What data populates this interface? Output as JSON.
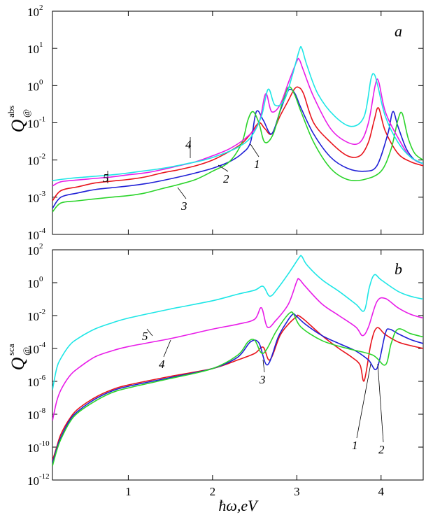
{
  "chart_data": [
    {
      "type": "line",
      "panel_label": "a",
      "ylabel": "Q",
      "ylabel_sub": "@",
      "ylabel_sup": "abs",
      "yscale": "log",
      "xlim": [
        0.1,
        4.5
      ],
      "ylim": [
        0.0001,
        100
      ],
      "y_ticks": [
        {
          "m": "10",
          "e": "-4"
        },
        {
          "m": "10",
          "e": "-3"
        },
        {
          "m": "10",
          "e": "-2"
        },
        {
          "m": "10",
          "e": "-1"
        },
        {
          "m": "10",
          "e": "0"
        },
        {
          "m": "10",
          "e": "1"
        },
        {
          "m": "10",
          "e": "2"
        }
      ],
      "series": [
        {
          "label": "1",
          "color": "#e8141c",
          "x": [
            0.1,
            0.2,
            0.4,
            0.6,
            0.8,
            1.0,
            1.2,
            1.4,
            1.6,
            1.8,
            2.0,
            2.2,
            2.35,
            2.45,
            2.55,
            2.62,
            2.7,
            2.8,
            2.9,
            2.97,
            3.02,
            3.08,
            3.2,
            3.4,
            3.6,
            3.75,
            3.85,
            3.92,
            3.97,
            4.05,
            4.2,
            4.35,
            4.5
          ],
          "y": [
            0.0008,
            0.0015,
            0.0019,
            0.0024,
            0.0027,
            0.003,
            0.0035,
            0.0045,
            0.0055,
            0.007,
            0.01,
            0.017,
            0.028,
            0.05,
            0.1,
            0.07,
            0.05,
            0.15,
            0.4,
            0.8,
            0.9,
            0.6,
            0.1,
            0.03,
            0.013,
            0.013,
            0.03,
            0.12,
            0.25,
            0.06,
            0.015,
            0.009,
            0.007
          ]
        },
        {
          "label": "2",
          "color": "#1f1fd6",
          "x": [
            0.1,
            0.2,
            0.4,
            0.6,
            0.8,
            1.0,
            1.2,
            1.4,
            1.6,
            1.8,
            2.0,
            2.2,
            2.35,
            2.45,
            2.52,
            2.6,
            2.7,
            2.8,
            2.88,
            2.92,
            2.98,
            3.05,
            3.2,
            3.4,
            3.6,
            3.8,
            3.95,
            4.08,
            4.14,
            4.2,
            4.3,
            4.4,
            4.5
          ],
          "y": [
            0.0005,
            0.001,
            0.0013,
            0.0016,
            0.0018,
            0.002,
            0.0023,
            0.0028,
            0.0035,
            0.0045,
            0.006,
            0.009,
            0.015,
            0.03,
            0.2,
            0.12,
            0.05,
            0.2,
            0.6,
            0.8,
            0.6,
            0.25,
            0.05,
            0.012,
            0.006,
            0.005,
            0.007,
            0.05,
            0.2,
            0.08,
            0.02,
            0.01,
            0.008
          ]
        },
        {
          "label": "3",
          "color": "#2bd42b",
          "x": [
            0.1,
            0.2,
            0.4,
            0.6,
            0.8,
            1.0,
            1.2,
            1.4,
            1.6,
            1.8,
            2.0,
            2.2,
            2.35,
            2.42,
            2.48,
            2.55,
            2.62,
            2.72,
            2.82,
            2.9,
            2.97,
            3.05,
            3.2,
            3.4,
            3.6,
            3.8,
            4.0,
            4.12,
            4.2,
            4.25,
            4.32,
            4.4,
            4.5
          ],
          "y": [
            0.0004,
            0.0007,
            0.0008,
            0.0009,
            0.001,
            0.0011,
            0.0013,
            0.0017,
            0.0022,
            0.003,
            0.005,
            0.009,
            0.03,
            0.12,
            0.2,
            0.1,
            0.03,
            0.05,
            0.3,
            0.9,
            0.6,
            0.2,
            0.03,
            0.006,
            0.003,
            0.003,
            0.005,
            0.02,
            0.12,
            0.18,
            0.04,
            0.015,
            0.01
          ]
        },
        {
          "label": "4",
          "color": "#e81ce8",
          "x": [
            0.1,
            0.2,
            0.4,
            0.6,
            0.8,
            1.0,
            1.2,
            1.4,
            1.6,
            1.8,
            2.0,
            2.2,
            2.4,
            2.55,
            2.63,
            2.7,
            2.8,
            2.9,
            3.0,
            3.03,
            3.08,
            3.2,
            3.4,
            3.6,
            3.75,
            3.85,
            3.93,
            3.97,
            4.05,
            4.2,
            4.35,
            4.5
          ],
          "y": [
            0.002,
            0.0026,
            0.0029,
            0.0032,
            0.0035,
            0.004,
            0.0045,
            0.0055,
            0.007,
            0.009,
            0.013,
            0.02,
            0.04,
            0.1,
            0.6,
            0.2,
            0.3,
            1.2,
            4.5,
            5.0,
            2.5,
            0.5,
            0.07,
            0.03,
            0.03,
            0.1,
            1.0,
            1.3,
            0.2,
            0.04,
            0.012,
            0.008
          ]
        },
        {
          "label": "5",
          "color": "#1de6e6",
          "x": [
            0.1,
            0.3,
            0.5,
            0.7,
            0.9,
            1.1,
            1.3,
            1.5,
            1.7,
            1.9,
            2.1,
            2.3,
            2.45,
            2.58,
            2.66,
            2.74,
            2.85,
            2.95,
            3.03,
            3.06,
            3.12,
            3.25,
            3.45,
            3.65,
            3.8,
            3.88,
            3.92,
            3.96,
            4.05,
            4.2,
            4.35,
            4.5
          ],
          "y": [
            0.0028,
            0.0032,
            0.0035,
            0.0038,
            0.0042,
            0.0048,
            0.0055,
            0.0065,
            0.008,
            0.01,
            0.014,
            0.022,
            0.04,
            0.15,
            0.8,
            0.3,
            0.4,
            2.0,
            9.0,
            10.0,
            3.5,
            0.6,
            0.15,
            0.08,
            0.15,
            1.5,
            2.0,
            1.0,
            0.15,
            0.03,
            0.012,
            0.008
          ]
        }
      ],
      "annotations": [
        "1",
        "2",
        "3",
        "4",
        "5"
      ]
    },
    {
      "type": "line",
      "panel_label": "b",
      "ylabel": "Q",
      "ylabel_sub": "@",
      "ylabel_sup": "sca",
      "yscale": "log",
      "xlabel": "ħω,eV",
      "xlim": [
        0.1,
        4.5
      ],
      "ylim": [
        1e-12,
        100
      ],
      "x_ticks": [
        "1",
        "2",
        "3",
        "4"
      ],
      "y_ticks": [
        {
          "m": "10",
          "e": "-12"
        },
        {
          "m": "10",
          "e": "-10"
        },
        {
          "m": "10",
          "e": "-8"
        },
        {
          "m": "10",
          "e": "-6"
        },
        {
          "m": "10",
          "e": "-4"
        },
        {
          "m": "10",
          "e": "-2"
        },
        {
          "m": "10",
          "e": "0"
        },
        {
          "m": "10",
          "e": "2"
        }
      ],
      "series": [
        {
          "label": "1",
          "color": "#e8141c",
          "x": [
            0.1,
            0.15,
            0.2,
            0.3,
            0.4,
            0.6,
            0.8,
            1.0,
            1.5,
            2.0,
            2.3,
            2.5,
            2.6,
            2.68,
            2.8,
            2.9,
            3.0,
            3.02,
            3.1,
            3.3,
            3.5,
            3.65,
            3.75,
            3.8,
            3.88,
            3.95,
            4.05,
            4.2,
            4.35,
            4.5
          ],
          "y": [
            1.5e-11,
            1e-10,
            6e-10,
            5e-09,
            2e-08,
            1e-07,
            3e-07,
            6e-07,
            2e-06,
            6e-06,
            2e-05,
            5e-05,
            0.00012,
            2e-05,
            0.0006,
            0.003,
            0.009,
            0.01,
            0.005,
            0.0006,
            0.0001,
            3e-05,
            1e-05,
            1.1e-06,
            0.0002,
            0.0018,
            0.0007,
            0.00025,
            0.00015,
            0.0001
          ]
        },
        {
          "label": "2",
          "color": "#1f1fd6",
          "x": [
            0.1,
            0.15,
            0.2,
            0.3,
            0.4,
            0.6,
            0.8,
            1.0,
            1.5,
            2.0,
            2.3,
            2.45,
            2.55,
            2.65,
            2.78,
            2.88,
            2.95,
            2.98,
            3.1,
            3.3,
            3.5,
            3.7,
            3.85,
            3.95,
            4.05,
            4.1,
            4.2,
            4.35,
            4.5
          ],
          "y": [
            1e-11,
            8e-11,
            4e-10,
            4e-09,
            1.5e-08,
            8e-08,
            2.5e-07,
            5e-07,
            1.7e-06,
            6e-06,
            3e-05,
            0.00025,
            0.00022,
            1e-05,
            0.0005,
            0.004,
            0.012,
            0.011,
            0.003,
            0.0006,
            0.0002,
            7e-05,
            2e-05,
            6e-06,
            0.0008,
            0.0015,
            0.0008,
            0.00035,
            0.0002
          ]
        },
        {
          "label": "3",
          "color": "#2bd42b",
          "x": [
            0.1,
            0.15,
            0.2,
            0.3,
            0.4,
            0.6,
            0.8,
            1.0,
            1.5,
            2.0,
            2.3,
            2.42,
            2.5,
            2.6,
            2.75,
            2.85,
            2.92,
            2.96,
            3.05,
            3.3,
            3.6,
            3.9,
            4.05,
            4.12,
            4.2,
            4.35,
            4.5
          ],
          "y": [
            7e-12,
            6e-11,
            3e-10,
            3e-09,
            1.2e-08,
            6e-08,
            2e-07,
            4e-07,
            1.5e-06,
            6e-06,
            4e-05,
            0.00025,
            0.00032,
            5e-05,
            0.001,
            0.006,
            0.015,
            0.013,
            0.002,
            0.0003,
            0.0001,
            4e-05,
            1e-05,
            0.0002,
            0.0015,
            0.0008,
            0.0005
          ]
        },
        {
          "label": "4",
          "color": "#e81ce8",
          "x": [
            0.1,
            0.15,
            0.2,
            0.3,
            0.4,
            0.6,
            0.8,
            1.0,
            1.5,
            2.0,
            2.3,
            2.5,
            2.58,
            2.65,
            2.75,
            2.9,
            3.0,
            3.03,
            3.1,
            3.3,
            3.5,
            3.7,
            3.78,
            3.85,
            3.95,
            4.05,
            4.2,
            4.35,
            4.5
          ],
          "y": [
            4e-09,
            6e-08,
            3e-07,
            2e-06,
            6e-06,
            3e-05,
            7e-05,
            0.00013,
            0.0004,
            0.0015,
            0.003,
            0.006,
            0.03,
            0.002,
            0.005,
            0.05,
            1.2,
            1.6,
            0.6,
            0.05,
            0.01,
            0.002,
            0.0006,
            0.002,
            0.07,
            0.11,
            0.03,
            0.012,
            0.007
          ]
        },
        {
          "label": "5",
          "color": "#1de6e6",
          "x": [
            0.1,
            0.15,
            0.2,
            0.3,
            0.4,
            0.6,
            0.8,
            1.0,
            1.5,
            2.0,
            2.3,
            2.5,
            2.6,
            2.68,
            2.78,
            2.92,
            3.03,
            3.06,
            3.12,
            3.3,
            3.5,
            3.7,
            3.8,
            3.86,
            3.92,
            4.0,
            4.2,
            4.35,
            4.5
          ],
          "y": [
            3e-07,
            6e-06,
            2.5e-05,
            0.00015,
            0.0004,
            0.0015,
            0.0035,
            0.007,
            0.025,
            0.08,
            0.2,
            0.35,
            0.6,
            0.15,
            0.5,
            5,
            35,
            40,
            12,
            1.5,
            0.3,
            0.05,
            0.02,
            0.5,
            3,
            1.5,
            0.3,
            0.15,
            0.1
          ]
        }
      ],
      "annotations": [
        "1",
        "2",
        "3",
        "4",
        "5"
      ]
    }
  ]
}
